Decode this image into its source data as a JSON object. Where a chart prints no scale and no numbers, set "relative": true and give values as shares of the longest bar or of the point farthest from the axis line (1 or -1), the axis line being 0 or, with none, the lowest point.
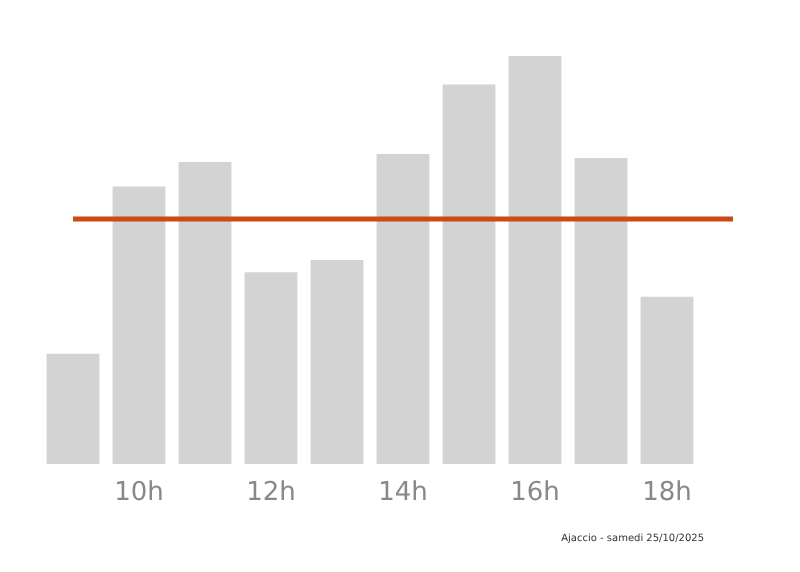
{
  "chart_data": {
    "type": "bar",
    "relative": true,
    "categories": [
      null,
      "10h",
      null,
      "12h",
      null,
      "14h",
      null,
      "16h",
      null,
      "18h",
      null
    ],
    "values": [
      0.27,
      0.68,
      0.74,
      0.47,
      0.5,
      0.76,
      0.93,
      1,
      0.75,
      0.41,
      0
    ],
    "color": "#d3d3d3",
    "ref_lines": [
      {
        "axis": "y",
        "value": 0.6,
        "color": "#cc4a14",
        "line_style": "solid"
      }
    ],
    "annotations": [
      "Ajaccio - samedi 25/10/2025"
    ],
    "grid": false
  }
}
